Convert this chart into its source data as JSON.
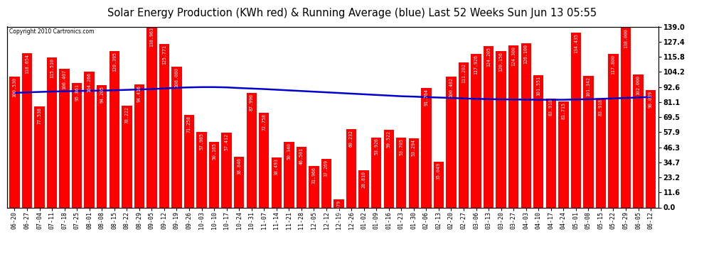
{
  "title": "Solar Energy Production (KWh red) & Running Average (blue) Last 52 Weeks Sun Jun 13 05:55",
  "copyright": "Copyright 2010 Cartronics.com",
  "bar_color": "#FF0000",
  "avg_color": "#0000CC",
  "background_color": "#FFFFFF",
  "plot_bg_color": "#FFFFFF",
  "ylabel_right_values": [
    0.0,
    11.6,
    23.2,
    34.7,
    46.3,
    57.9,
    69.5,
    81.1,
    92.6,
    104.2,
    115.8,
    127.4,
    139.0
  ],
  "xlabels": [
    "06-20",
    "06-27",
    "07-04",
    "07-11",
    "07-18",
    "07-25",
    "08-01",
    "08-08",
    "08-15",
    "08-22",
    "08-29",
    "09-05",
    "09-12",
    "09-19",
    "09-26",
    "10-03",
    "10-10",
    "10-17",
    "10-24",
    "10-31",
    "11-07",
    "11-14",
    "11-21",
    "11-28",
    "12-05",
    "12-12",
    "12-19",
    "12-26",
    "01-02",
    "01-09",
    "01-16",
    "01-23",
    "01-30",
    "02-06",
    "02-13",
    "02-20",
    "02-27",
    "03-06",
    "03-13",
    "03-20",
    "03-27",
    "04-03",
    "04-10",
    "04-17",
    "04-24",
    "05-01",
    "05-08",
    "05-15",
    "05-22",
    "05-29",
    "06-05",
    "06-12"
  ],
  "bar_values": [
    100.53,
    118.654,
    77.538,
    115.51,
    106.407,
    95.861,
    104.266,
    94.205,
    120.395,
    78.222,
    94.416,
    138.963,
    125.771,
    108.08,
    71.258,
    57.985,
    50.165,
    57.412,
    38.846,
    87.99,
    72.758,
    38.493,
    50.34,
    46.501,
    31.966,
    37.269,
    6.079,
    60.232,
    28.81,
    53.926,
    59.522,
    53.705,
    53.294,
    91.764,
    35.049,
    100.402,
    111.202,
    117.926,
    124.205,
    120.156,
    124.3,
    126.1,
    101.551,
    83.918,
    81.715,
    134.435,
    101.342,
    83.918,
    117.8,
    138.0,
    102.0,
    90.039
  ],
  "avg_values": [
    88.0,
    88.5,
    88.8,
    89.1,
    89.3,
    89.5,
    89.7,
    89.8,
    90.1,
    90.4,
    90.7,
    91.0,
    91.5,
    92.0,
    92.3,
    92.5,
    92.5,
    92.3,
    91.8,
    91.4,
    91.0,
    90.5,
    90.0,
    89.5,
    89.0,
    88.5,
    88.0,
    87.5,
    87.0,
    86.5,
    86.0,
    85.5,
    85.2,
    84.8,
    84.5,
    84.2,
    83.8,
    83.5,
    83.3,
    83.1,
    83.0,
    82.9,
    82.8,
    82.8,
    82.8,
    83.0,
    83.2,
    83.5,
    83.8,
    84.2,
    84.5,
    85.0
  ],
  "ylim": [
    0,
    139.0
  ],
  "grid_color": "#AAAAAA",
  "title_fontsize": 10.5,
  "tick_fontsize": 6.0,
  "bar_label_fontsize": 4.8,
  "copyright_fontsize": 5.5
}
